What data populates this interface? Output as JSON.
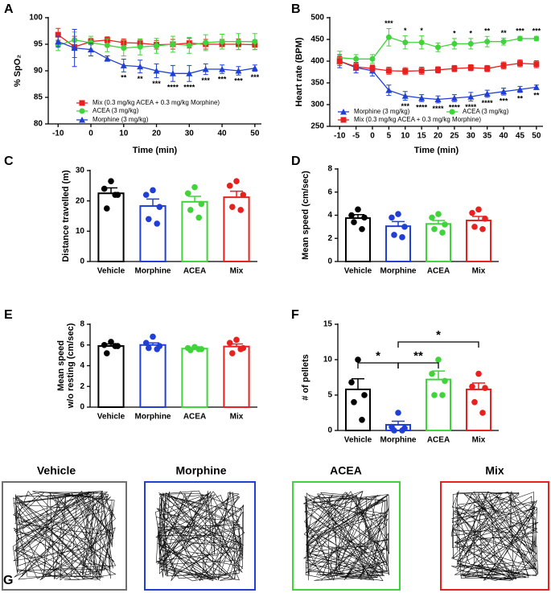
{
  "chart_data": [
    {
      "type": "line",
      "panel": "A",
      "ylabel": "% SpO₂",
      "xlabel": "Time (min)",
      "x": [
        -10,
        -5,
        0,
        5,
        10,
        15,
        20,
        25,
        30,
        35,
        40,
        45,
        50
      ],
      "xlim": [
        -13,
        52
      ],
      "xticks": [
        -10,
        0,
        10,
        20,
        30,
        40,
        50
      ],
      "ylim": [
        80,
        100
      ],
      "yticks": [
        80,
        85,
        90,
        95,
        100
      ],
      "series": [
        {
          "name": "Mix (0.3 mg/kg ACEA + 0.3 mg/kg Morphine)",
          "color": "#e8201e",
          "marker": "square",
          "values": [
            96.8,
            94.5,
            95.5,
            95.8,
            95.3,
            95.2,
            94.9,
            95,
            95.2,
            95,
            95,
            95,
            94.9
          ],
          "errors": [
            1.2,
            2,
            0.6,
            0.6,
            0.7,
            0.7,
            0.8,
            0.9,
            0.9,
            0.9,
            0.9,
            1,
            0.9
          ]
        },
        {
          "name": "ACEA (3 mg/kg)",
          "color": "#3fd43a",
          "marker": "circle",
          "values": [
            94.8,
            95.8,
            95.3,
            94.8,
            94.3,
            94.5,
            94.7,
            95,
            94.8,
            95.3,
            95.5,
            95.5,
            95.5
          ],
          "errors": [
            1,
            1.5,
            1.2,
            1.2,
            1.5,
            1.5,
            1.4,
            1.5,
            1.5,
            1.5,
            1.4,
            1.5,
            1.5
          ]
        },
        {
          "name": "Morphine (3 mg/kg)",
          "color": "#1f3fd6",
          "marker": "triangle",
          "values": [
            95.5,
            94.3,
            94,
            92.3,
            91,
            90.8,
            90,
            89.5,
            89.5,
            90.3,
            90.3,
            90,
            90.5
          ],
          "errors": [
            1,
            3.5,
            1.2,
            0.5,
            1.2,
            1.2,
            1.3,
            1.5,
            1.5,
            1,
            0.8,
            0.8,
            0.6
          ],
          "annotations": [
            null,
            null,
            null,
            null,
            "**",
            "**",
            "***",
            "****",
            "****",
            "***",
            "***",
            "***",
            "***"
          ]
        }
      ]
    },
    {
      "type": "line",
      "panel": "B",
      "ylabel": "Heart rate (BPM)",
      "xlabel": "Time (min)",
      "x": [
        -10,
        -5,
        0,
        5,
        10,
        15,
        20,
        25,
        30,
        35,
        40,
        45,
        50
      ],
      "xlim": [
        -13,
        52
      ],
      "xticks": [
        -10,
        -5,
        0,
        5,
        10,
        15,
        20,
        25,
        30,
        35,
        40,
        45,
        50
      ],
      "ylim": [
        250,
        500
      ],
      "yticks": [
        250,
        300,
        350,
        400,
        450,
        500
      ],
      "series": [
        {
          "name": "Morphine (3 mg/kg)",
          "color": "#1f3fd6",
          "marker": "triangle",
          "values": [
            400,
            385,
            378,
            333,
            320,
            315,
            312,
            315,
            318,
            325,
            330,
            335,
            340
          ],
          "errors": [
            15,
            12,
            12,
            12,
            10,
            8,
            8,
            8,
            10,
            8,
            8,
            7,
            5
          ],
          "annotations": [
            null,
            null,
            null,
            null,
            "***",
            "****",
            "****",
            "****",
            "****",
            "****",
            "***",
            "**",
            "**"
          ]
        },
        {
          "name": "ACEA (3 mg/kg)",
          "color": "#3fd43a",
          "marker": "circle",
          "values": [
            408,
            405,
            405,
            455,
            443,
            443,
            432,
            440,
            440,
            445,
            445,
            452,
            452
          ],
          "errors": [
            15,
            10,
            10,
            20,
            15,
            15,
            10,
            12,
            12,
            12,
            8,
            5,
            5
          ],
          "annotations": [
            null,
            null,
            null,
            "***",
            "*",
            "*",
            null,
            "*",
            "*",
            "**",
            "**",
            "***",
            "***"
          ]
        },
        {
          "name": "Mix (0.3 mg/kg ACEA + 0.3 mg/kg Morphine)",
          "color": "#e8201e",
          "marker": "square",
          "values": [
            400,
            387,
            383,
            378,
            377,
            378,
            380,
            383,
            385,
            383,
            390,
            395,
            393
          ],
          "errors": [
            10,
            8,
            8,
            8,
            8,
            8,
            7,
            7,
            7,
            7,
            8,
            8,
            8
          ]
        }
      ]
    },
    {
      "type": "bar",
      "panel": "C",
      "ylabel": "Distance travelled (m)",
      "categories": [
        "Vehicle",
        "Morphine",
        "ACEA",
        "Mix"
      ],
      "colors": [
        "#000000",
        "#1f3fd6",
        "#3fd43a",
        "#e8201e"
      ],
      "ylim": [
        0,
        30
      ],
      "yticks": [
        0,
        10,
        20,
        30
      ],
      "values": [
        22.5,
        18.3,
        19.7,
        21.2
      ],
      "errors": [
        1.8,
        2.3,
        1.8,
        2
      ],
      "points": [
        [
          26.5,
          24,
          22,
          17.5,
          22
        ],
        [
          23.5,
          22,
          18,
          14,
          12.5
        ],
        [
          24.5,
          22.5,
          19,
          17,
          14.5
        ],
        [
          26.5,
          25,
          22,
          18,
          17
        ]
      ]
    },
    {
      "type": "bar",
      "panel": "D",
      "ylabel": "Mean speed (cm/sec)",
      "categories": [
        "Vehicle",
        "Morphine",
        "ACEA",
        "Mix"
      ],
      "colors": [
        "#000000",
        "#1f3fd6",
        "#3fd43a",
        "#e8201e"
      ],
      "ylim": [
        0,
        8
      ],
      "yticks": [
        0,
        2,
        4,
        6,
        8
      ],
      "values": [
        3.75,
        3.05,
        3.25,
        3.55
      ],
      "errors": [
        0.3,
        0.4,
        0.3,
        0.35
      ],
      "points": [
        [
          4.5,
          4,
          3.8,
          3.4,
          2.8
        ],
        [
          4.1,
          3.8,
          3,
          2.3,
          2.1
        ],
        [
          4.1,
          3.8,
          3.2,
          2.8,
          2.5
        ],
        [
          4.5,
          4.2,
          3.7,
          3,
          2.8
        ]
      ]
    },
    {
      "type": "bar",
      "panel": "E",
      "ylabel": [
        "Mean speed",
        "w/o resting (cm/sec)"
      ],
      "categories": [
        "Vehicle",
        "Morphine",
        "ACEA",
        "Mix"
      ],
      "colors": [
        "#000000",
        "#1f3fd6",
        "#3fd43a",
        "#e8201e"
      ],
      "ylim": [
        0,
        8
      ],
      "yticks": [
        0,
        2,
        4,
        6,
        8
      ],
      "values": [
        5.9,
        6,
        5.65,
        5.85
      ],
      "errors": [
        0.2,
        0.2,
        0.1,
        0.25
      ],
      "points": [
        [
          6.3,
          6,
          5.9,
          5.2,
          5.9
        ],
        [
          6.8,
          6.2,
          5.9,
          5.7,
          5.6
        ],
        [
          5.8,
          5.7,
          5.6,
          5.5,
          5.6
        ],
        [
          6.5,
          6.2,
          5.7,
          5.2,
          5.6
        ]
      ]
    },
    {
      "type": "bar",
      "panel": "F",
      "ylabel": "# of pellets",
      "categories": [
        "Vehicle",
        "Morphine",
        "ACEA",
        "Mix"
      ],
      "colors": [
        "#000000",
        "#1f3fd6",
        "#3fd43a",
        "#e8201e"
      ],
      "ylim": [
        0,
        15
      ],
      "yticks": [
        0,
        5,
        10,
        15
      ],
      "values": [
        5.8,
        0.8,
        7.2,
        5.8
      ],
      "errors": [
        1.5,
        0.5,
        1.2,
        0.9
      ],
      "points": [
        [
          10,
          6.8,
          5,
          4,
          1.5
        ],
        [
          2.5,
          0.5,
          0.3,
          0,
          0
        ],
        [
          10,
          8,
          7,
          5,
          5
        ],
        [
          8,
          6.2,
          6,
          4,
          2.5
        ]
      ],
      "comparisons": [
        {
          "groups": [
            "Vehicle",
            "Morphine"
          ],
          "label": "*"
        },
        {
          "groups": [
            "Morphine",
            "ACEA"
          ],
          "label": "**"
        },
        {
          "groups": [
            "Morphine",
            "Mix"
          ],
          "label": "*"
        }
      ]
    }
  ],
  "panel_g": {
    "panel": "G",
    "groups": [
      {
        "label": "Vehicle",
        "color": "#6e6e6e"
      },
      {
        "label": "Morphine",
        "color": "#1f3fd6"
      },
      {
        "label": "ACEA",
        "color": "#3fd43a"
      },
      {
        "label": "Mix",
        "color": "#e8201e"
      }
    ]
  }
}
